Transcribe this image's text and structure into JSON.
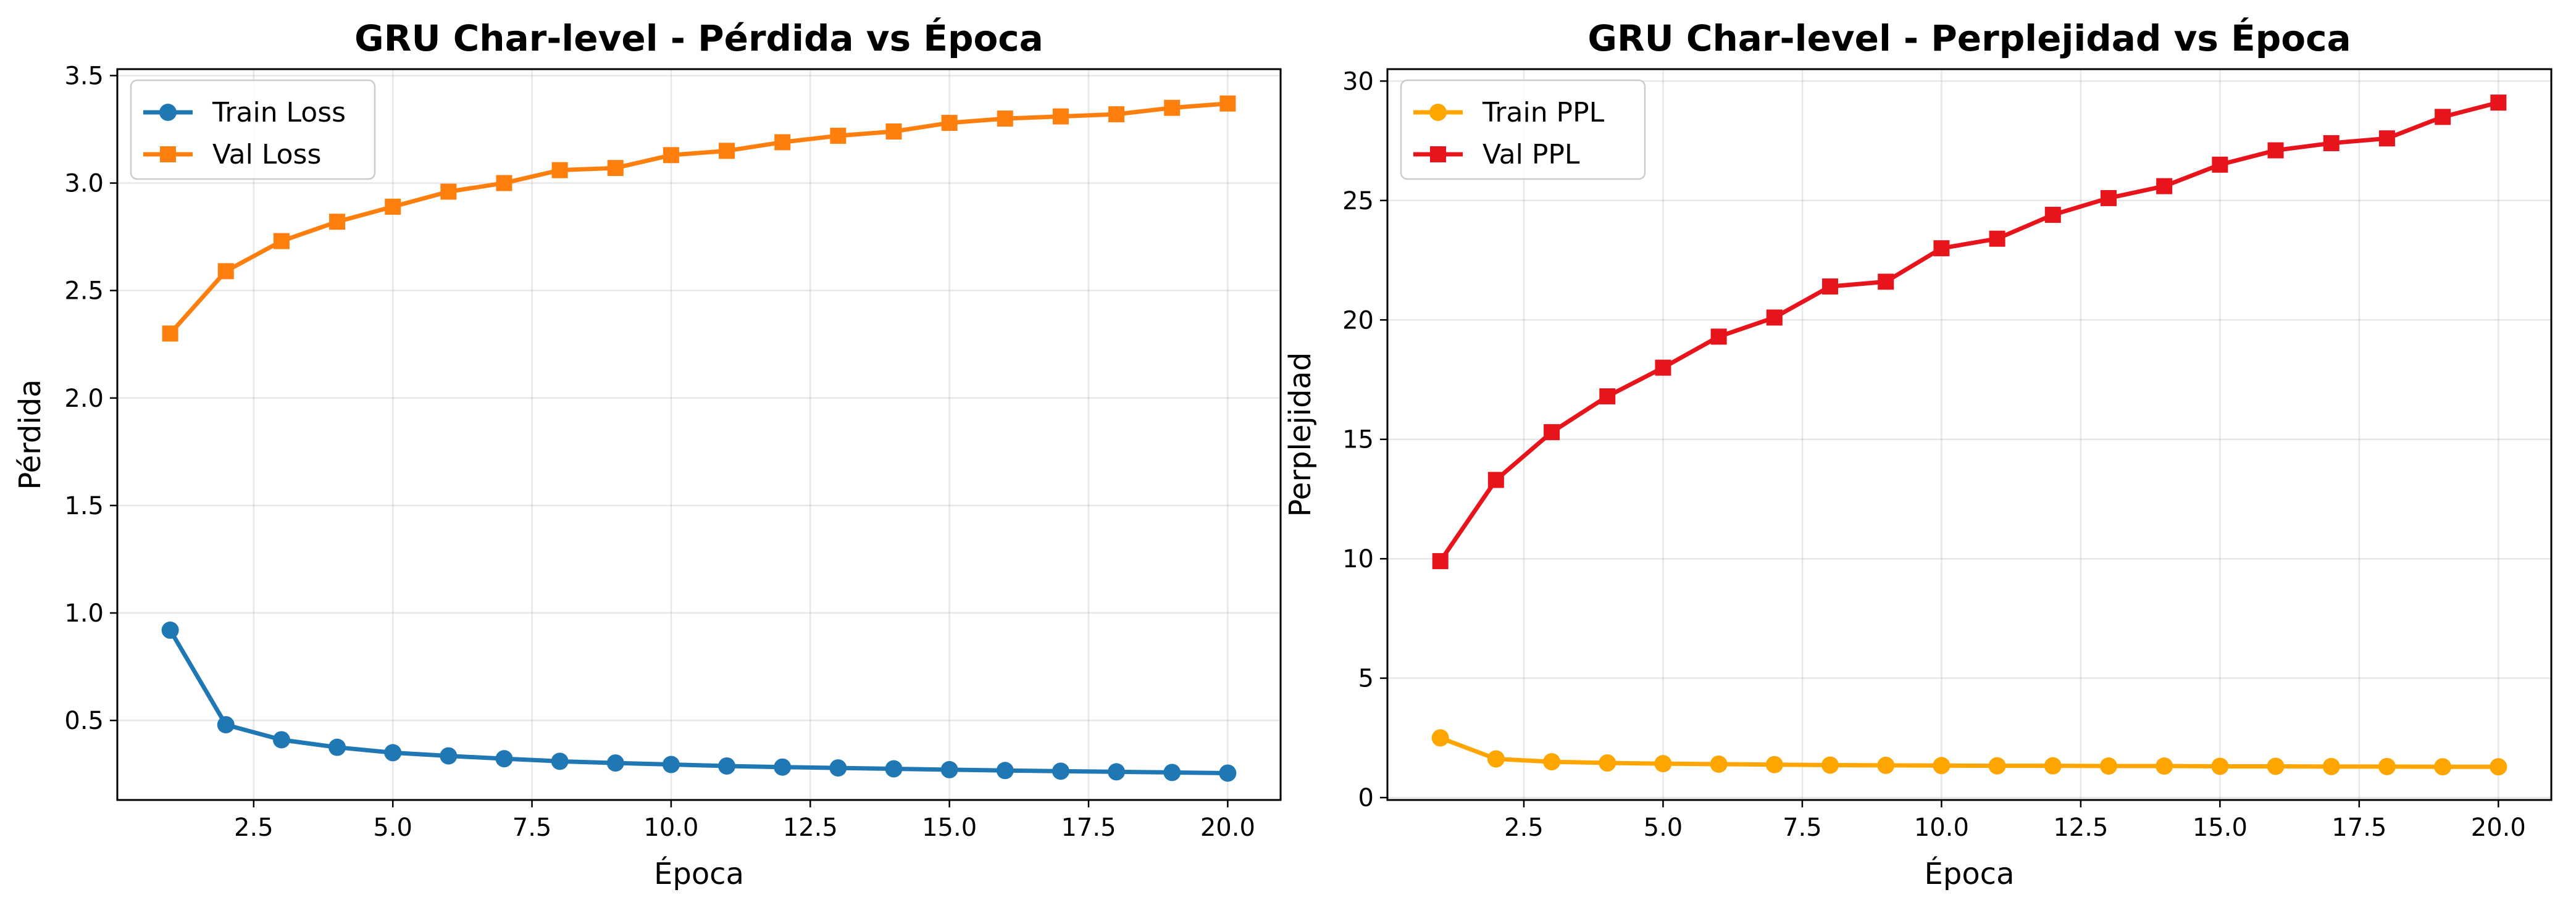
{
  "chart_data": [
    {
      "type": "line",
      "title": "GRU Char-level - Pérdida vs Época",
      "xlabel": "Época",
      "ylabel": "Pérdida",
      "xlim": [
        0.05,
        20.95
      ],
      "ylim": [
        0.13,
        3.53
      ],
      "xticks": [
        2.5,
        5.0,
        7.5,
        10.0,
        12.5,
        15.0,
        17.5,
        20.0
      ],
      "xtick_labels": [
        "2.5",
        "5.0",
        "7.5",
        "10.0",
        "12.5",
        "15.0",
        "17.5",
        "20.0"
      ],
      "yticks": [
        0.5,
        1.0,
        1.5,
        2.0,
        2.5,
        3.0,
        3.5
      ],
      "ytick_labels": [
        "0.5",
        "1.0",
        "1.5",
        "2.0",
        "2.5",
        "3.0",
        "3.5"
      ],
      "grid": true,
      "legend": "upper-left",
      "x": [
        1,
        2,
        3,
        4,
        5,
        6,
        7,
        8,
        9,
        10,
        11,
        12,
        13,
        14,
        15,
        16,
        17,
        18,
        19,
        20
      ],
      "series": [
        {
          "name": "Train Loss",
          "color": "#1f77b4",
          "marker": "circle",
          "values": [
            0.92,
            0.48,
            0.41,
            0.375,
            0.35,
            0.335,
            0.322,
            0.31,
            0.302,
            0.295,
            0.288,
            0.283,
            0.279,
            0.275,
            0.271,
            0.267,
            0.264,
            0.261,
            0.258,
            0.255
          ]
        },
        {
          "name": "Val Loss",
          "color": "#ff7f0e",
          "marker": "square",
          "values": [
            2.3,
            2.59,
            2.73,
            2.82,
            2.89,
            2.96,
            3.0,
            3.06,
            3.07,
            3.13,
            3.15,
            3.19,
            3.22,
            3.24,
            3.28,
            3.3,
            3.31,
            3.32,
            3.35,
            3.37
          ]
        }
      ]
    },
    {
      "type": "line",
      "title": "GRU Char-level - Perplejidad vs Época",
      "xlabel": "Época",
      "ylabel": "Perplejidad",
      "xlim": [
        0.05,
        20.95
      ],
      "ylim": [
        -0.1,
        30.5
      ],
      "xticks": [
        2.5,
        5.0,
        7.5,
        10.0,
        12.5,
        15.0,
        17.5,
        20.0
      ],
      "xtick_labels": [
        "2.5",
        "5.0",
        "7.5",
        "10.0",
        "12.5",
        "15.0",
        "17.5",
        "20.0"
      ],
      "yticks": [
        0,
        5,
        10,
        15,
        20,
        25,
        30
      ],
      "ytick_labels": [
        "0",
        "5",
        "10",
        "15",
        "20",
        "25",
        "30"
      ],
      "grid": true,
      "legend": "upper-left",
      "x": [
        1,
        2,
        3,
        4,
        5,
        6,
        7,
        8,
        9,
        10,
        11,
        12,
        13,
        14,
        15,
        16,
        17,
        18,
        19,
        20
      ],
      "series": [
        {
          "name": "Train PPL",
          "color": "#ffa500",
          "marker": "circle",
          "values": [
            2.5,
            1.62,
            1.5,
            1.45,
            1.42,
            1.4,
            1.38,
            1.36,
            1.35,
            1.34,
            1.33,
            1.33,
            1.32,
            1.32,
            1.31,
            1.31,
            1.3,
            1.3,
            1.29,
            1.29
          ]
        },
        {
          "name": "Val PPL",
          "color": "#e8141c",
          "marker": "square",
          "values": [
            9.9,
            13.3,
            15.3,
            16.8,
            18.0,
            19.3,
            20.1,
            21.4,
            21.6,
            23.0,
            23.4,
            24.4,
            25.1,
            25.6,
            26.5,
            27.1,
            27.4,
            27.6,
            28.5,
            29.1
          ]
        }
      ]
    }
  ]
}
